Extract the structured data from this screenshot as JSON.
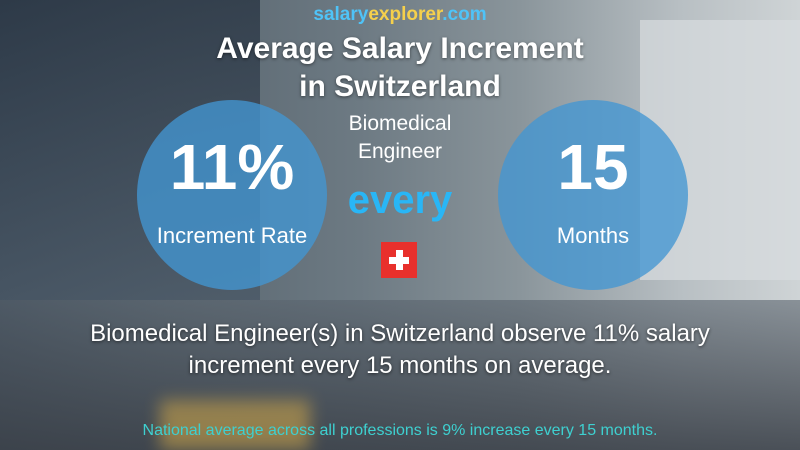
{
  "brand": {
    "part1": "salary",
    "part2": "explorer",
    "part3": ".com"
  },
  "title": {
    "line1": "Average Salary Increment",
    "line2": "in Switzerland"
  },
  "job": {
    "line1": "Biomedical",
    "line2": "Engineer"
  },
  "increment": {
    "value": "11%",
    "label": "Increment Rate"
  },
  "connector": "every",
  "period": {
    "value": "15",
    "label": "Months"
  },
  "flag": "switzerland-flag",
  "description": {
    "line1": "Biomedical Engineer(s) in Switzerland observe 11% salary",
    "line2": "increment every 15 months on average."
  },
  "national_note": "National average across all professions is 9% increase every 15 months."
}
